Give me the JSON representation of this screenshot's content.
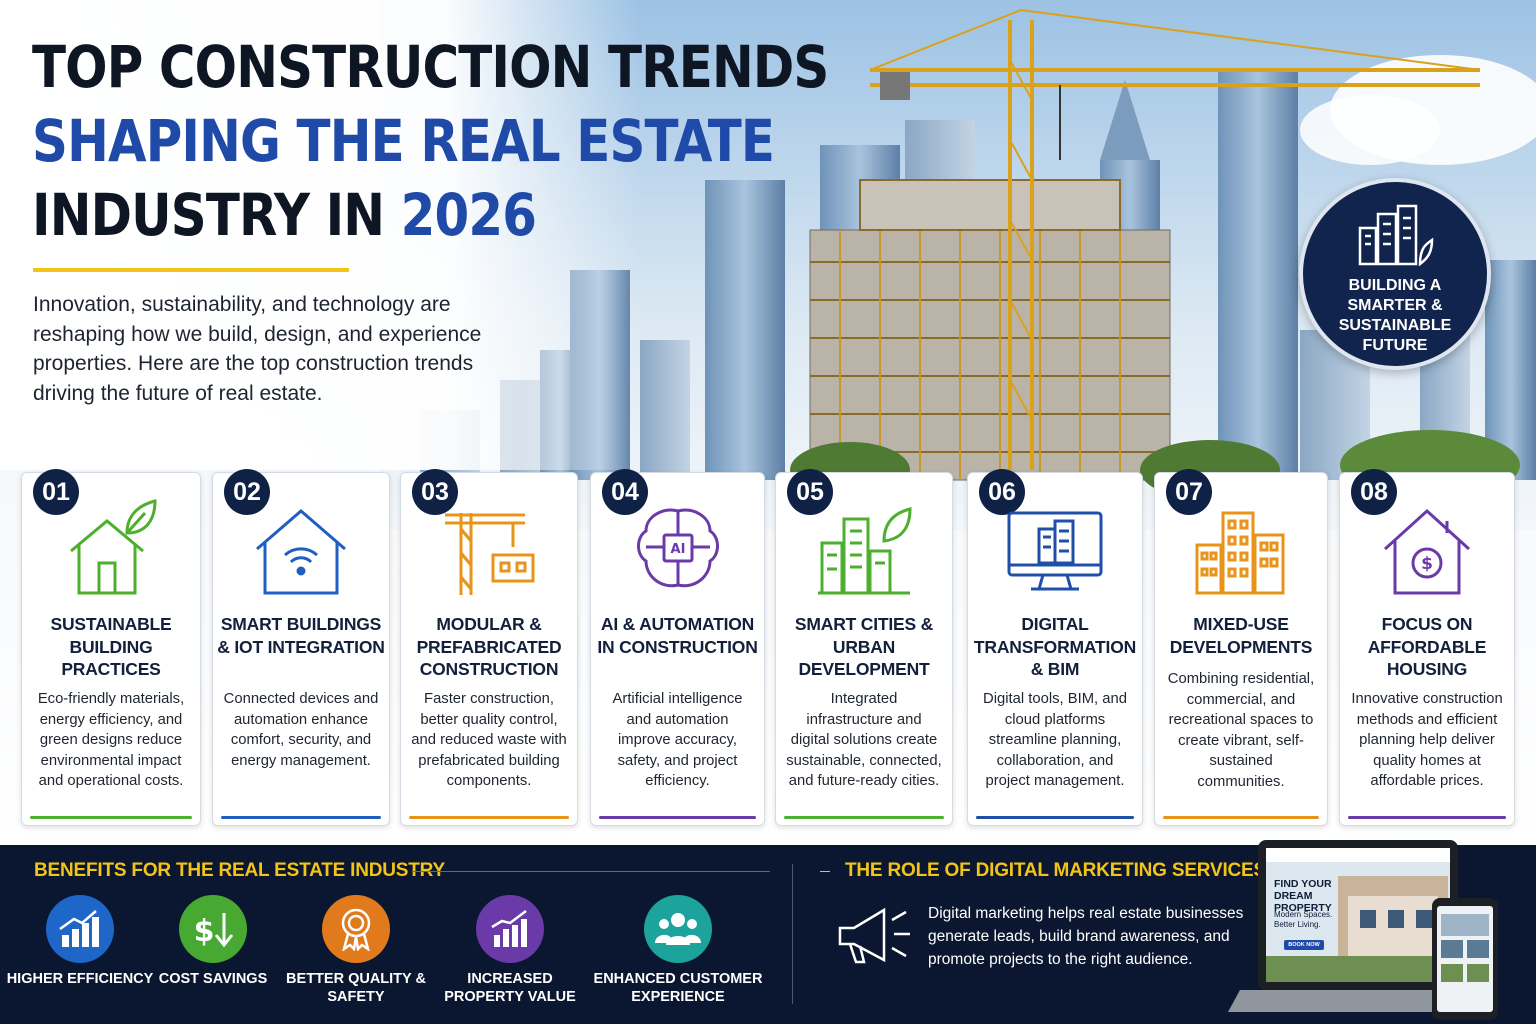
{
  "header": {
    "title_line1": "TOP CONSTRUCTION TRENDS",
    "title_line2": "SHAPING THE REAL ESTATE",
    "title_line3_prefix": "INDUSTRY IN ",
    "title_line3_year": "2026",
    "intro": "Innovation, sustainability, and technology are reshaping how we build, design, and experience properties. Here are the top construction trends driving the future of real estate."
  },
  "badge": {
    "text": "BUILDING A SMARTER & SUSTAINABLE FUTURE",
    "icon": "city-leaf-icon"
  },
  "trends": [
    {
      "number": "01",
      "title": "SUSTAINABLE BUILDING PRACTICES",
      "description": "Eco-friendly materials, energy efficiency, and green designs reduce environmental impact and operational costs.",
      "icon": "green-house-leaf-icon",
      "color": "#4caf2e"
    },
    {
      "number": "02",
      "title": "SMART BUILDINGS & IOT INTEGRATION",
      "description": "Connected devices and automation enhance comfort, security, and energy management.",
      "icon": "smart-home-wifi-icon",
      "color": "#1f5fc4"
    },
    {
      "number": "03",
      "title": "MODULAR & PREFABRICATED CONSTRUCTION",
      "description": "Faster construction, better quality control, and reduced waste with prefabricated building components.",
      "icon": "crane-module-icon",
      "color": "#e8931a"
    },
    {
      "number": "04",
      "title": "AI & AUTOMATION IN CONSTRUCTION",
      "description": "Artificial intelligence and automation improve accuracy, safety, and project efficiency.",
      "icon": "ai-brain-icon",
      "color": "#6a3aa8"
    },
    {
      "number": "05",
      "title": "SMART CITIES & URBAN DEVELOPMENT",
      "description": "Integrated infrastructure and digital solutions create sustainable, connected, and future-ready cities.",
      "icon": "green-city-icon",
      "color": "#4caf2e"
    },
    {
      "number": "06",
      "title": "DIGITAL TRANSFORMATION & BIM",
      "description": "Digital tools, BIM, and cloud platforms streamline planning, collaboration, and project management.",
      "icon": "monitor-building-icon",
      "color": "#1f4fa8"
    },
    {
      "number": "07",
      "title": "MIXED-USE DEVELOPMENTS",
      "description": "Combining residential, commercial, and recreational spaces to create vibrant, self-sustained communities.",
      "icon": "mixed-use-buildings-icon",
      "color": "#e8931a"
    },
    {
      "number": "08",
      "title": "FOCUS ON AFFORDABLE HOUSING",
      "description": "Innovative construction methods and efficient planning help deliver quality homes at affordable prices.",
      "icon": "house-dollar-icon",
      "color": "#6a3aa8"
    }
  ],
  "benefits": {
    "heading": "BENEFITS FOR THE REAL ESTATE INDUSTRY",
    "items": [
      {
        "label": "HIGHER EFFICIENCY",
        "icon": "rising-bar-chart-icon",
        "color": "#1f66c9"
      },
      {
        "label": "COST SAVINGS",
        "icon": "dollar-down-arrow-icon",
        "color": "#47a832"
      },
      {
        "label": "BETTER QUALITY & SAFETY",
        "icon": "quality-medal-icon",
        "color": "#e07a1c"
      },
      {
        "label": "INCREASED PROPERTY VALUE",
        "icon": "growth-chart-icon",
        "color": "#6a3aa8"
      },
      {
        "label": "ENHANCED CUSTOMER EXPERIENCE",
        "icon": "people-group-icon",
        "color": "#1ba39c"
      }
    ]
  },
  "marketing": {
    "heading": "THE ROLE OF DIGITAL MARKETING SERVICES",
    "text": "Digital marketing helps real estate businesses generate leads, build brand awareness, and promote projects to the right audience.",
    "icon": "megaphone-icon",
    "laptop_headline": "FIND YOUR DREAM PROPERTY",
    "laptop_sub": "Modern Spaces. Better Living.",
    "laptop_button": "BOOK NOW"
  },
  "colors": {
    "navy": "#0b1730",
    "accent_yellow": "#f2c418",
    "title_blue": "#1f4aa8"
  }
}
